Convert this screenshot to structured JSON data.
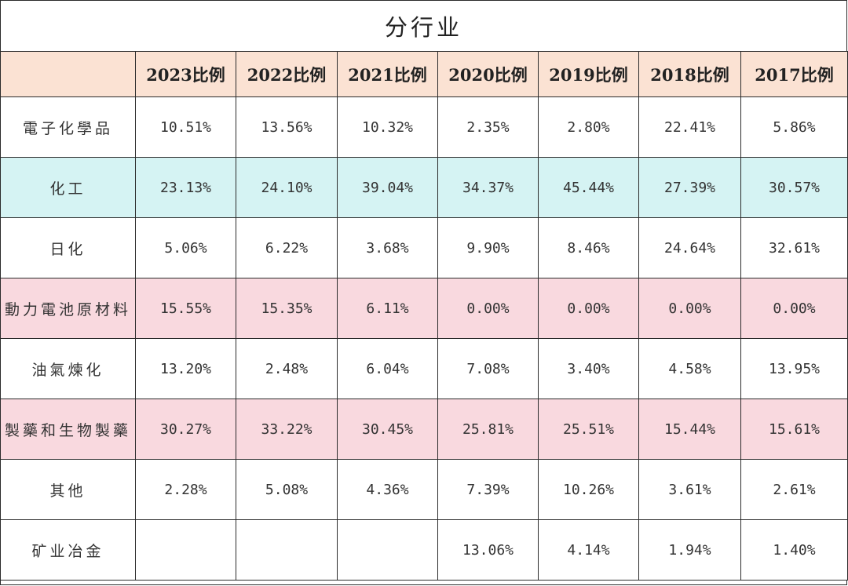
{
  "title": "分行业",
  "columns": [
    "",
    "2023比例",
    "2022比例",
    "2021比例",
    "2020比例",
    "2019比例",
    "2018比例",
    "2017比例"
  ],
  "colors": {
    "header_bg": "#fbe2d3",
    "cyan_row": "#d5f3f3",
    "pink_row": "#f9d9df",
    "white_row": "#ffffff"
  },
  "rows": [
    {
      "label": "電子化學品",
      "style": "white",
      "values": [
        "10.51%",
        "13.56%",
        "10.32%",
        "2.35%",
        "2.80%",
        "22.41%",
        "5.86%"
      ]
    },
    {
      "label": "化工",
      "style": "cyan",
      "values": [
        "23.13%",
        "24.10%",
        "39.04%",
        "34.37%",
        "45.44%",
        "27.39%",
        "30.57%"
      ]
    },
    {
      "label": "日化",
      "style": "white",
      "values": [
        "5.06%",
        "6.22%",
        "3.68%",
        "9.90%",
        "8.46%",
        "24.64%",
        "32.61%"
      ]
    },
    {
      "label": "動力電池原材料",
      "style": "pink",
      "values": [
        "15.55%",
        "15.35%",
        "6.11%",
        "0.00%",
        "0.00%",
        "0.00%",
        "0.00%"
      ]
    },
    {
      "label": "油氣煉化",
      "style": "white",
      "values": [
        "13.20%",
        "2.48%",
        "6.04%",
        "7.08%",
        "3.40%",
        "4.58%",
        "13.95%"
      ]
    },
    {
      "label": "製藥和生物製藥",
      "style": "pink",
      "values": [
        "30.27%",
        "33.22%",
        "30.45%",
        "25.81%",
        "25.51%",
        "15.44%",
        "15.61%"
      ]
    },
    {
      "label": "其他",
      "style": "white",
      "values": [
        "2.28%",
        "5.08%",
        "4.36%",
        "7.39%",
        "10.26%",
        "3.61%",
        "2.61%"
      ]
    },
    {
      "label": "矿业冶金",
      "style": "white",
      "values": [
        "",
        "",
        "",
        "13.06%",
        "4.14%",
        "1.94%",
        "1.40%"
      ]
    }
  ]
}
